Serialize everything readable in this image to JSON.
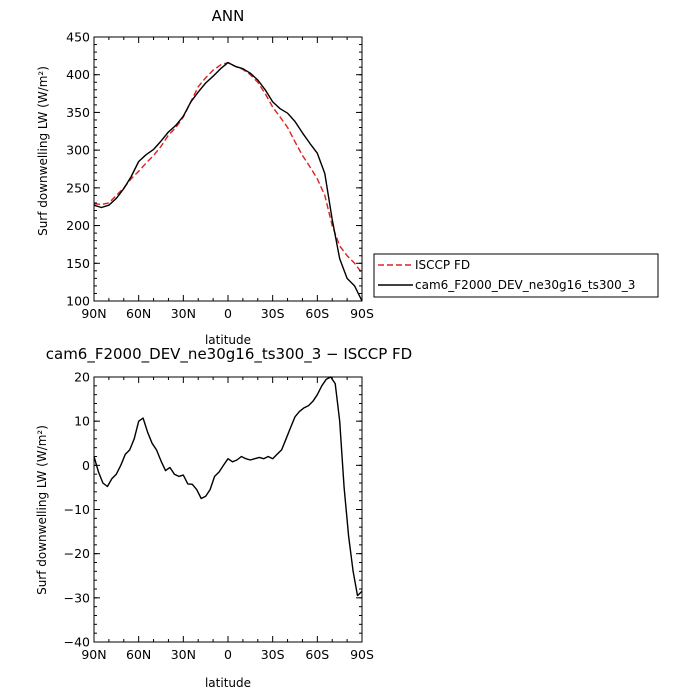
{
  "chart_data": [
    {
      "type": "line",
      "title": "ANN",
      "xlabel": "latitude",
      "ylabel": "Surf downwelling LW (W/m²)",
      "xlim": [
        90,
        -90
      ],
      "ylim": [
        100,
        450
      ],
      "xticks": [
        90,
        60,
        30,
        0,
        -30,
        -60,
        -90
      ],
      "xtick_labels": [
        "90N",
        "60N",
        "30N",
        "0",
        "30S",
        "60S",
        "90S"
      ],
      "yticks": [
        100,
        150,
        200,
        250,
        300,
        350,
        400,
        450
      ],
      "ytick_labels": [
        "100",
        "150",
        "200",
        "250",
        "300",
        "350",
        "400",
        "450"
      ],
      "legend_position": "right, outside plot",
      "series": [
        {
          "name": "ISCCP FD",
          "color": "#e02020",
          "dash": "dashed",
          "x": [
            90,
            85,
            80,
            75,
            70,
            65,
            60,
            55,
            50,
            45,
            40,
            35,
            30,
            25,
            20,
            15,
            10,
            5,
            0,
            -5,
            -10,
            -15,
            -20,
            -25,
            -30,
            -35,
            -40,
            -45,
            -50,
            -55,
            -60,
            -65,
            -70,
            -75,
            -80,
            -85,
            -90
          ],
          "y": [
            229,
            228,
            230,
            240,
            250,
            262,
            272,
            283,
            293,
            305,
            320,
            330,
            344,
            364,
            384,
            396,
            406,
            413,
            416,
            411,
            407,
            400,
            390,
            375,
            357,
            344,
            330,
            311,
            293,
            278,
            262,
            240,
            200,
            173,
            160,
            150,
            137
          ]
        },
        {
          "name": "cam6_F2000_DEV_ne30g16_ts300_3",
          "color": "#000000",
          "dash": "solid",
          "x": [
            90,
            85,
            80,
            75,
            70,
            65,
            60,
            55,
            50,
            45,
            40,
            35,
            30,
            25,
            20,
            15,
            10,
            5,
            0,
            -5,
            -10,
            -15,
            -20,
            -25,
            -30,
            -35,
            -40,
            -45,
            -50,
            -55,
            -60,
            -65,
            -70,
            -75,
            -80,
            -85,
            -90
          ],
          "y": [
            227,
            224,
            227,
            236,
            249,
            265,
            285,
            294,
            301,
            312,
            324,
            333,
            345,
            364,
            377,
            389,
            398,
            408,
            416,
            411,
            408,
            402,
            393,
            380,
            364,
            355,
            349,
            338,
            323,
            309,
            296,
            269,
            208,
            156,
            130,
            120,
            100
          ]
        }
      ]
    },
    {
      "type": "line",
      "title": "cam6_F2000_DEV_ne30g16_ts300_3 − ISCCP FD",
      "xlabel": "latitude",
      "ylabel": "Surf downwelling LW (W/m²)",
      "xlim": [
        90,
        -90
      ],
      "ylim": [
        -40,
        20
      ],
      "xticks": [
        90,
        60,
        30,
        0,
        -30,
        -60,
        -90
      ],
      "xtick_labels": [
        "90N",
        "60N",
        "30N",
        "0",
        "30S",
        "60S",
        "90S"
      ],
      "yticks": [
        -40,
        -30,
        -20,
        -10,
        0,
        10,
        20
      ],
      "ytick_labels": [
        "−40",
        "−30",
        "−20",
        "−10",
        "0",
        "10",
        "20"
      ],
      "series": [
        {
          "name": "",
          "color": "#000000",
          "dash": "solid",
          "x": [
            90,
            87,
            84,
            81,
            78,
            75,
            72,
            69,
            66,
            63,
            60,
            57,
            54,
            51,
            48,
            45,
            42,
            39,
            36,
            33,
            30,
            27,
            24,
            21,
            18,
            15,
            12,
            9,
            6,
            3,
            0,
            -3,
            -6,
            -9,
            -12,
            -15,
            -18,
            -21,
            -24,
            -27,
            -30,
            -33,
            -36,
            -39,
            -42,
            -45,
            -48,
            -51,
            -54,
            -57,
            -60,
            -63,
            -66,
            -69,
            -72,
            -75,
            -78,
            -81,
            -84,
            -87,
            -90
          ],
          "y": [
            2,
            -1.5,
            -4,
            -4.8,
            -3,
            -2,
            0,
            2.5,
            3.5,
            6,
            10,
            10.7,
            7.5,
            5,
            3.5,
            1,
            -1.2,
            -0.5,
            -2,
            -2.5,
            -2.2,
            -4.2,
            -4.3,
            -5.5,
            -7.5,
            -7,
            -5.5,
            -2.5,
            -1.5,
            0,
            1.5,
            0.8,
            1.2,
            2,
            1.5,
            1.2,
            1.5,
            1.8,
            1.5,
            2,
            1.5,
            2.5,
            3.5,
            6,
            8.5,
            11,
            12.2,
            13,
            13.5,
            14.5,
            16,
            18,
            19.5,
            20,
            18.5,
            10,
            -5,
            -16,
            -24,
            -29.5,
            -28.5
          ]
        }
      ]
    }
  ]
}
